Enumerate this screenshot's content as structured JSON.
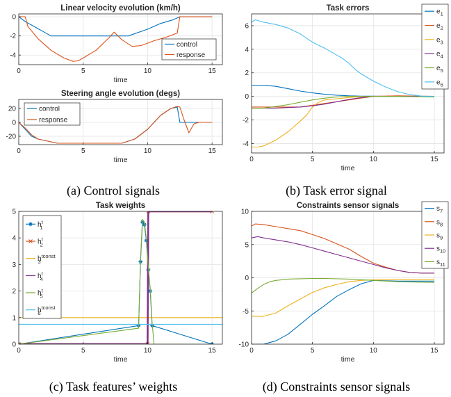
{
  "chart_data": [
    {
      "id": "a1",
      "type": "line",
      "title": "Linear velocity evolution (km/h)",
      "xlabel": "time",
      "ylabel": "",
      "xlim": [
        0,
        15.8
      ],
      "ylim": [
        -5,
        0.3
      ],
      "xticks": [
        0,
        5,
        10,
        15
      ],
      "yticks": [
        -4,
        -2,
        0
      ],
      "grid": true,
      "legend_position": "bottom-right",
      "series": [
        {
          "name": "control",
          "color": "#0072BD",
          "x": [
            0,
            0.5,
            2.5,
            8.5,
            10,
            11,
            12,
            12.5,
            15
          ],
          "y": [
            0,
            -0.5,
            -2,
            -2,
            -1.3,
            -0.7,
            -0.3,
            0,
            0
          ]
        },
        {
          "name": "response",
          "color": "#D95319",
          "x": [
            0,
            0.5,
            0.7,
            1.5,
            2.5,
            3.5,
            4.2,
            4.6,
            5,
            6,
            7,
            7.4,
            8,
            8.8,
            9.5,
            10.5,
            11.5,
            12.3,
            12.5,
            15
          ],
          "y": [
            0,
            0,
            -1,
            -2.3,
            -3.5,
            -4.3,
            -4.65,
            -4.6,
            -4.3,
            -3.5,
            -2.2,
            -1.6,
            -2.4,
            -3.1,
            -3,
            -2.5,
            -2.1,
            -1.7,
            0,
            0
          ]
        }
      ]
    },
    {
      "id": "a2",
      "type": "line",
      "title": "Steering angle evolution (degs)",
      "xlabel": "time",
      "ylabel": "",
      "xlim": [
        0,
        15.8
      ],
      "ylim": [
        -32,
        33
      ],
      "xticks": [
        0,
        5,
        10,
        15
      ],
      "yticks": [
        -20,
        0,
        20
      ],
      "grid": true,
      "legend_position": "top-left",
      "series": [
        {
          "name": "control",
          "color": "#0072BD",
          "x": [
            0,
            0.5,
            1,
            1.5,
            2.5,
            3,
            8,
            8.5,
            9,
            10,
            11,
            11.8,
            12.3,
            12.5,
            14,
            15
          ],
          "y": [
            0,
            -10,
            -20,
            -24,
            -28,
            -30,
            -30,
            -27,
            -24,
            -10,
            10,
            20,
            22,
            0,
            0,
            0
          ]
        },
        {
          "name": "response",
          "color": "#D95319",
          "x": [
            0,
            0.5,
            1,
            1.5,
            2.5,
            3,
            8,
            8.5,
            9,
            10,
            11,
            11.8,
            12.3,
            12.5,
            12.8,
            13.2,
            13.6,
            14,
            15
          ],
          "y": [
            0,
            -8,
            -18,
            -24,
            -28,
            -30,
            -30,
            -27,
            -24,
            -10,
            10,
            20,
            23,
            22,
            5,
            -15,
            -2,
            0,
            0
          ]
        }
      ]
    },
    {
      "id": "b",
      "type": "line",
      "title": "Task errors",
      "xlabel": "time",
      "ylabel": "",
      "xlim": [
        0,
        15.8
      ],
      "ylim": [
        -4.8,
        7
      ],
      "xticks": [
        0,
        5,
        10,
        15
      ],
      "yticks": [
        -4,
        -2,
        0,
        2,
        4,
        6
      ],
      "grid": true,
      "legend_position": "top-right",
      "series": [
        {
          "name": "e1",
          "label_main": "e",
          "label_sub": "1",
          "color": "#0072BD",
          "x": [
            0,
            1,
            2,
            3,
            4,
            5,
            6,
            7,
            8,
            9,
            10,
            11,
            12,
            15
          ],
          "y": [
            0.95,
            0.95,
            0.85,
            0.65,
            0.45,
            0.3,
            0.18,
            0.1,
            0.05,
            0.02,
            0.02,
            0,
            0,
            0
          ]
        },
        {
          "name": "e2",
          "label_main": "e",
          "label_sub": "2",
          "color": "#D95319",
          "x": [
            0,
            2,
            4,
            6,
            8,
            10,
            12,
            15
          ],
          "y": [
            -0.9,
            -0.9,
            -0.9,
            -0.6,
            -0.3,
            0,
            0.05,
            0
          ]
        },
        {
          "name": "e3",
          "label_main": "e",
          "label_sub": "3",
          "color": "#EDB120",
          "x": [
            0,
            0.5,
            1,
            2,
            3,
            4,
            4.5,
            5,
            5.5,
            6,
            7,
            8,
            9,
            10,
            12,
            15
          ],
          "y": [
            -4.3,
            -4.3,
            -4.2,
            -3.7,
            -3,
            -2.1,
            -1.6,
            -0.9,
            -0.5,
            -0.3,
            -0.2,
            -0.1,
            0,
            0,
            0,
            0
          ]
        },
        {
          "name": "e4",
          "label_main": "e",
          "label_sub": "4",
          "color": "#7E2F8E",
          "x": [
            0,
            1,
            2,
            3,
            4,
            5,
            6,
            7,
            8,
            9,
            10,
            11,
            12,
            15
          ],
          "y": [
            -1,
            -1,
            -1,
            -0.95,
            -0.9,
            -0.8,
            -0.65,
            -0.45,
            -0.25,
            -0.1,
            0,
            0,
            0,
            0
          ]
        },
        {
          "name": "e5",
          "label_main": "e",
          "label_sub": "5",
          "color": "#77AC30",
          "x": [
            0,
            1,
            2,
            3,
            4,
            5,
            6,
            7,
            8,
            10,
            12,
            15
          ],
          "y": [
            -1,
            -1,
            -0.85,
            -0.7,
            -0.5,
            -0.3,
            -0.15,
            -0.05,
            0,
            0,
            0,
            -0.05
          ]
        },
        {
          "name": "e6",
          "label_main": "e",
          "label_sub": "6",
          "color": "#4DBEEE",
          "x": [
            0,
            0.3,
            1,
            2,
            3,
            4,
            5,
            6,
            7,
            7.5,
            8,
            8.5,
            9,
            10,
            11,
            12,
            13,
            14,
            15
          ],
          "y": [
            6.3,
            6.5,
            6.3,
            6.1,
            5.8,
            5.3,
            4.6,
            4.1,
            3.5,
            3.2,
            2.8,
            2.3,
            1.9,
            1.3,
            0.8,
            0.4,
            0.15,
            0.02,
            0
          ]
        }
      ]
    },
    {
      "id": "c",
      "type": "line",
      "title": "Task weights",
      "xlabel": "time",
      "ylabel": "",
      "xlim": [
        0,
        15.8
      ],
      "ylim": [
        0,
        5
      ],
      "xticks": [
        0,
        5,
        10,
        15
      ],
      "yticks": [
        0,
        1,
        2,
        3,
        4,
        5
      ],
      "grid": true,
      "legend_position": "top-left",
      "series": [
        {
          "name": "h1 t",
          "label_main": "h",
          "label_sub": "1",
          "label_sup": "t",
          "color": "#0072BD",
          "marker": "*",
          "x": [
            0,
            9.3,
            9.45,
            9.6,
            9.75,
            9.9,
            10.05,
            10.2,
            10.35,
            15
          ],
          "y": [
            0,
            0.7,
            3.1,
            4.6,
            4.5,
            3.9,
            2.8,
            2,
            0.7,
            0
          ]
        },
        {
          "name": "h2 t",
          "label_main": "h",
          "label_sub": "2",
          "label_sup": "t",
          "color": "#D95319",
          "marker": "x",
          "x": [
            0,
            10,
            10.05,
            15
          ],
          "y": [
            0,
            0,
            5,
            5
          ]
        },
        {
          "name": "h3 tconst",
          "label_main": "h",
          "label_sub": "3",
          "label_sup": "tconst",
          "color": "#EDB120",
          "x": [
            0,
            15.8
          ],
          "y": [
            1,
            1
          ]
        },
        {
          "name": "h4 t",
          "label_main": "h",
          "label_sub": "4",
          "label_sup": "t",
          "color": "#7E2F8E",
          "x": [
            0,
            10,
            10.05,
            15
          ],
          "y": [
            0,
            0,
            5,
            5
          ]
        },
        {
          "name": "h5 t",
          "label_main": "h",
          "label_sub": "5",
          "label_sup": "t",
          "color": "#77AC30",
          "x": [
            0,
            9.3,
            9.45,
            9.6,
            9.75,
            9.9,
            10.05,
            10.2,
            10.35,
            10.5,
            15
          ],
          "y": [
            0,
            0.6,
            3.2,
            4.7,
            4.6,
            4,
            2.9,
            2.1,
            0.8,
            0,
            0
          ]
        },
        {
          "name": "h6 tconst",
          "label_main": "h",
          "label_sub": "6",
          "label_sup": "tconst",
          "color": "#4DBEEE",
          "x": [
            0,
            15.8
          ],
          "y": [
            0.75,
            0.75
          ]
        }
      ]
    },
    {
      "id": "d",
      "type": "line",
      "title": "Constraints sensor signals",
      "xlabel": "time",
      "ylabel": "",
      "xlim": [
        0,
        15.8
      ],
      "ylim": [
        -10,
        10
      ],
      "xticks": [
        0,
        5,
        10,
        15
      ],
      "yticks": [
        -10,
        -5,
        0,
        5,
        10
      ],
      "grid": true,
      "legend_position": "top-right",
      "series": [
        {
          "name": "s7",
          "label_main": "s",
          "label_sub": "7",
          "color": "#0072BD",
          "x": [
            0,
            1,
            2,
            3,
            4,
            5,
            6,
            7,
            8,
            9,
            10,
            12,
            15
          ],
          "y": [
            -10,
            -10,
            -9.5,
            -8.5,
            -7,
            -5.5,
            -4.2,
            -2.8,
            -1.8,
            -0.9,
            -0.4,
            -0.5,
            -0.5
          ]
        },
        {
          "name": "s8",
          "label_main": "s",
          "label_sub": "8",
          "color": "#D95319",
          "x": [
            0,
            0.3,
            1,
            2,
            3,
            4,
            5,
            6,
            7,
            8,
            9,
            10,
            11,
            12,
            13,
            14,
            15
          ],
          "y": [
            7.8,
            8.1,
            8,
            7.7,
            7.4,
            7.1,
            6.5,
            5.9,
            5.1,
            4.3,
            3.2,
            2.2,
            1.6,
            1.1,
            0.8,
            0.7,
            0.7
          ]
        },
        {
          "name": "s9",
          "label_main": "s",
          "label_sub": "9",
          "color": "#EDB120",
          "x": [
            0,
            1,
            2,
            3,
            4,
            5,
            6,
            7,
            8,
            9,
            10,
            12,
            15
          ],
          "y": [
            -5.8,
            -5.8,
            -5.3,
            -4.2,
            -3.2,
            -2.2,
            -1.5,
            -1,
            -0.6,
            -0.4,
            -0.3,
            -0.3,
            -0.3
          ]
        },
        {
          "name": "s10",
          "label_main": "s",
          "label_sub": "10",
          "color": "#7E2F8E",
          "x": [
            0,
            0.5,
            1,
            2,
            3,
            4,
            5,
            6,
            7,
            8,
            9,
            10,
            11,
            12,
            13,
            14,
            15
          ],
          "y": [
            6,
            6.2,
            6,
            5.7,
            5.4,
            5,
            4.5,
            4,
            3.5,
            3,
            2.5,
            2,
            1.5,
            1.1,
            0.8,
            0.7,
            0.7
          ]
        },
        {
          "name": "s11",
          "label_main": "s",
          "label_sub": "11",
          "color": "#77AC30",
          "x": [
            0,
            0.5,
            1,
            1.5,
            2,
            3,
            4,
            5,
            6,
            8,
            10,
            12,
            15
          ],
          "y": [
            -2.3,
            -1.6,
            -1,
            -0.6,
            -0.4,
            -0.2,
            -0.15,
            -0.1,
            -0.1,
            -0.2,
            -0.4,
            -0.6,
            -0.7
          ]
        }
      ]
    }
  ],
  "captions": {
    "a": "(a) Control signals",
    "b": "(b) Task error signal",
    "c": "(c) Task features’ weights",
    "d": "(d) Constraints sensor signals"
  }
}
